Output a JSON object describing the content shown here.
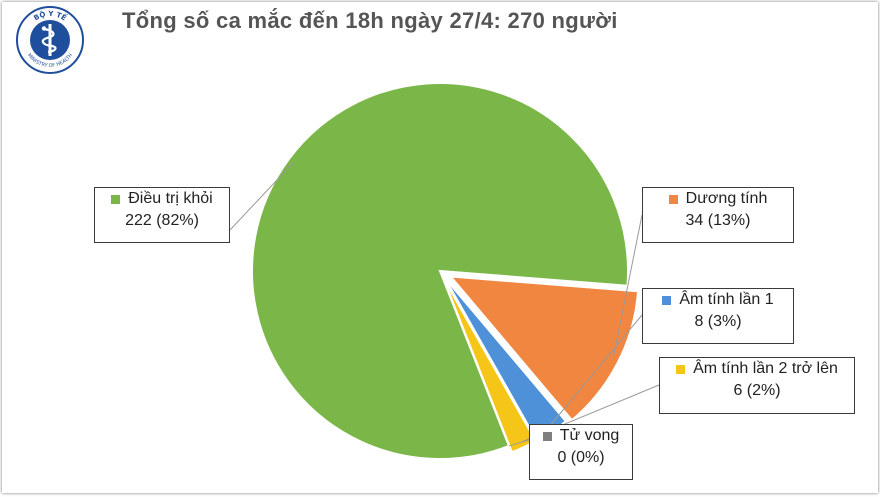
{
  "chart_data": {
    "type": "pie",
    "title": "Tổng số ca mắc đến 18h ngày 27/4: 270 người",
    "total": 270,
    "slices": [
      {
        "label": "Điều trị khỏi",
        "value": 222,
        "value_label": "222 (82%)",
        "color": "#7ab648"
      },
      {
        "label": "Dương tính",
        "value": 34,
        "value_label": "34 (13%)",
        "color": "#f08640"
      },
      {
        "label": "Âm tính lần 1",
        "value": 8,
        "value_label": "8 (3%)",
        "color": "#4f91d9"
      },
      {
        "label": "Âm tính lần 2 trở lên",
        "value": 6,
        "value_label": "6 (2%)",
        "color": "#f5c518"
      },
      {
        "label": "Tử vong",
        "value": 0,
        "value_label": "0 (0%)",
        "color": "#7f7f7f"
      }
    ],
    "labels_position": "outside with leader lines"
  },
  "logo": {
    "text_top": "BỘ Y TẾ",
    "text_bottom": "MINISTRY OF HEALTH",
    "color": "#1f4e9c"
  }
}
